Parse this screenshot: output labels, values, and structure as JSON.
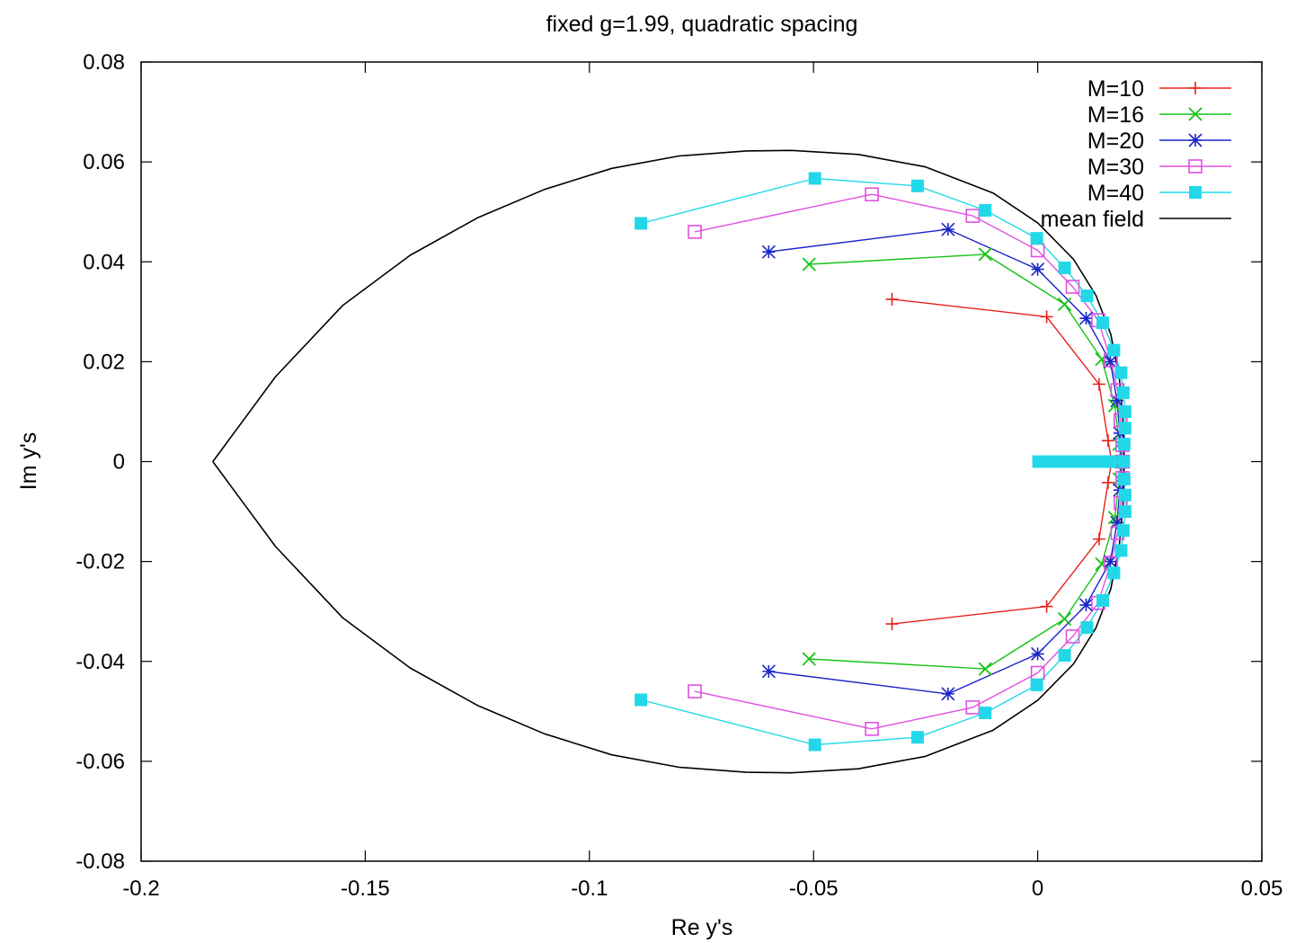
{
  "chart_data": {
    "type": "line",
    "title": "fixed g=1.99, quadratic spacing",
    "xlabel": "Re y's",
    "ylabel": "Im y's",
    "xlim": [
      -0.2,
      0.05
    ],
    "ylim": [
      -0.08,
      0.08
    ],
    "xticks": [
      -0.2,
      -0.15,
      -0.1,
      -0.05,
      0,
      0.05
    ],
    "xtick_labels": [
      "-0.2",
      "-0.15",
      "-0.1",
      "-0.05",
      "0",
      "0.05"
    ],
    "yticks": [
      -0.08,
      -0.06,
      -0.04,
      -0.02,
      0,
      0.02,
      0.04,
      0.06,
      0.08
    ],
    "ytick_labels": [
      "-0.08",
      "-0.06",
      "-0.04",
      "-0.02",
      "0",
      "0.02",
      "0.04",
      "0.06",
      "0.08"
    ],
    "grid": false,
    "legend_position": "top-right",
    "series": [
      {
        "name": "M=10",
        "color": "#e8221b",
        "marker": "plus",
        "points": [
          [
            -0.0325,
            0.0325
          ],
          [
            0.002,
            0.029
          ],
          [
            0.0137,
            0.0155
          ],
          [
            0.0157,
            0.0042
          ],
          [
            0.0165,
            0.0
          ],
          [
            0.0157,
            -0.0042
          ],
          [
            0.0137,
            -0.0155
          ],
          [
            0.002,
            -0.029
          ],
          [
            -0.0325,
            -0.0325
          ]
        ]
      },
      {
        "name": "M=16",
        "color": "#16c316",
        "marker": "cross",
        "points": [
          [
            -0.051,
            0.0395
          ],
          [
            -0.0117,
            0.0415
          ],
          [
            0.006,
            0.0315
          ],
          [
            0.0143,
            0.0205
          ],
          [
            0.0172,
            0.0112
          ],
          [
            0.0182,
            0.0035
          ],
          [
            0.0185,
            0.0
          ],
          [
            0.0182,
            -0.0035
          ],
          [
            0.0172,
            -0.0112
          ],
          [
            0.0143,
            -0.0205
          ],
          [
            0.006,
            -0.0315
          ],
          [
            -0.0117,
            -0.0415
          ],
          [
            -0.051,
            -0.0395
          ]
        ]
      },
      {
        "name": "M=20",
        "color": "#1a24c8",
        "marker": "star",
        "points": [
          [
            -0.06,
            0.042
          ],
          [
            -0.02,
            0.0465
          ],
          [
            0.0,
            0.0385
          ],
          [
            0.0108,
            0.0287
          ],
          [
            0.0162,
            0.02
          ],
          [
            0.0177,
            0.0122
          ],
          [
            0.0183,
            0.0057
          ],
          [
            0.0187,
            0.0
          ],
          [
            0.0183,
            -0.0057
          ],
          [
            0.0177,
            -0.0122
          ],
          [
            0.0162,
            -0.02
          ],
          [
            0.0108,
            -0.0287
          ],
          [
            0.0,
            -0.0385
          ],
          [
            -0.02,
            -0.0465
          ],
          [
            -0.06,
            -0.042
          ]
        ]
      },
      {
        "name": "M=30",
        "color": "#e050e0",
        "marker": "square-open",
        "points": [
          [
            -0.0765,
            0.046
          ],
          [
            -0.037,
            0.0535
          ],
          [
            -0.0145,
            0.0492
          ],
          [
            0.0,
            0.0423
          ],
          [
            0.0078,
            0.035
          ],
          [
            0.0135,
            0.0283
          ],
          [
            0.0163,
            0.0203
          ],
          [
            0.0178,
            0.0143
          ],
          [
            0.0185,
            0.0083
          ],
          [
            0.0189,
            0.0033
          ],
          [
            0.019,
            0.0
          ],
          [
            0.0189,
            -0.0033
          ],
          [
            0.0185,
            -0.0083
          ],
          [
            0.0178,
            -0.0143
          ],
          [
            0.0163,
            -0.0203
          ],
          [
            0.0135,
            -0.0283
          ],
          [
            0.0078,
            -0.035
          ],
          [
            0.0,
            -0.0423
          ],
          [
            -0.0145,
            -0.0492
          ],
          [
            -0.037,
            -0.0535
          ],
          [
            -0.0765,
            -0.046
          ]
        ]
      },
      {
        "name": "M=40",
        "color": "#22d8e8",
        "marker": "square-filled",
        "points": [
          [
            -0.0885,
            0.0477
          ],
          [
            -0.0497,
            0.0567
          ],
          [
            -0.0268,
            0.0552
          ],
          [
            -0.0117,
            0.0503
          ],
          [
            -0.0002,
            0.0447
          ],
          [
            0.006,
            0.0388
          ],
          [
            0.011,
            0.0332
          ],
          [
            0.0145,
            0.0278
          ],
          [
            0.017,
            0.0223
          ],
          [
            0.0186,
            0.0178
          ],
          [
            0.0191,
            0.0138
          ],
          [
            0.0195,
            0.01
          ],
          [
            0.0195,
            0.0067
          ],
          [
            0.0193,
            0.0035
          ],
          [
            0.0192,
            0.0
          ],
          [
            0.0193,
            -0.0035
          ],
          [
            0.0195,
            -0.0067
          ],
          [
            0.0195,
            -0.01
          ],
          [
            0.0191,
            -0.0138
          ],
          [
            0.0186,
            -0.0178
          ],
          [
            0.017,
            -0.0223
          ],
          [
            0.0145,
            -0.0278
          ],
          [
            0.011,
            -0.0332
          ],
          [
            0.006,
            -0.0388
          ],
          [
            -0.0002,
            -0.0447
          ],
          [
            -0.0117,
            -0.0503
          ],
          [
            -0.0268,
            -0.0552
          ],
          [
            -0.0497,
            -0.0567
          ],
          [
            -0.0885,
            -0.0477
          ]
        ]
      },
      {
        "name": "mean field",
        "color": "#000000",
        "marker": "none",
        "points": [
          [
            -0.184,
            0.0
          ],
          [
            -0.17,
            0.017
          ],
          [
            -0.155,
            0.0313
          ],
          [
            -0.14,
            0.0413
          ],
          [
            -0.125,
            0.0488
          ],
          [
            -0.11,
            0.0545
          ],
          [
            -0.095,
            0.0587
          ],
          [
            -0.08,
            0.0612
          ],
          [
            -0.065,
            0.0622
          ],
          [
            -0.055,
            0.0623
          ],
          [
            -0.04,
            0.0615
          ],
          [
            -0.025,
            0.059
          ],
          [
            -0.01,
            0.0538
          ],
          [
            0.0,
            0.0478
          ],
          [
            0.008,
            0.0405
          ],
          [
            0.013,
            0.0333
          ],
          [
            0.0163,
            0.0255
          ],
          [
            0.0182,
            0.0168
          ],
          [
            0.019,
            0.0085
          ],
          [
            0.0193,
            0.0
          ],
          [
            0.019,
            -0.0085
          ],
          [
            0.0182,
            -0.0168
          ],
          [
            0.0163,
            -0.0255
          ],
          [
            0.013,
            -0.0333
          ],
          [
            0.008,
            -0.0405
          ],
          [
            0.0,
            -0.0478
          ],
          [
            -0.01,
            -0.0538
          ],
          [
            -0.025,
            -0.059
          ],
          [
            -0.04,
            -0.0615
          ],
          [
            -0.055,
            -0.0623
          ],
          [
            -0.065,
            -0.0622
          ],
          [
            -0.08,
            -0.0612
          ],
          [
            -0.095,
            -0.0587
          ],
          [
            -0.11,
            -0.0545
          ],
          [
            -0.125,
            -0.0488
          ],
          [
            -0.14,
            -0.0413
          ],
          [
            -0.155,
            -0.0313
          ],
          [
            -0.17,
            -0.017
          ],
          [
            -0.184,
            0.0
          ]
        ]
      }
    ],
    "axis_spike": {
      "color": "#22d8e8",
      "points": [
        [
          0.0,
          0.0
        ],
        [
          0.01,
          0.0
        ],
        [
          0.0165,
          0.0
        ]
      ]
    }
  }
}
